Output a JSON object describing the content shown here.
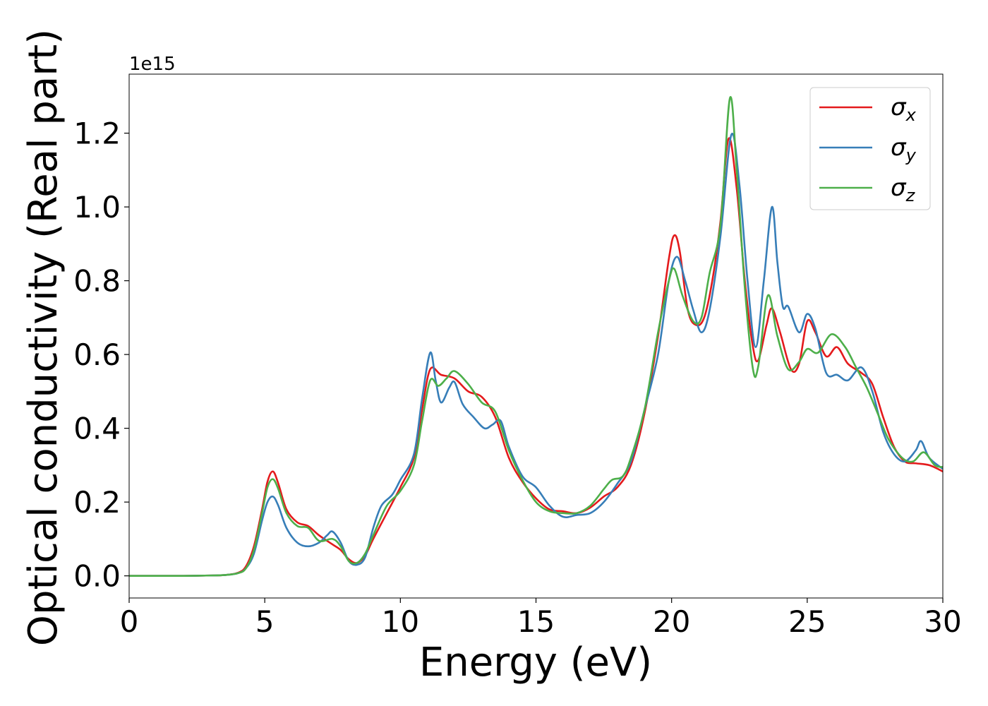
{
  "chart_data": {
    "type": "line",
    "xlabel": "Energy (eV)",
    "ylabel": "Optical conductivity (Real part)",
    "offset_text": "1e15",
    "xlim": [
      0,
      30
    ],
    "ylim": [
      -0.06,
      1.36
    ],
    "x_ticks": [
      0,
      5,
      10,
      15,
      20,
      25,
      30
    ],
    "x_tick_labels": [
      "0",
      "5",
      "10",
      "15",
      "20",
      "25",
      "30"
    ],
    "y_ticks": [
      0.0,
      0.2,
      0.4,
      0.6,
      0.8,
      1.0,
      1.2
    ],
    "y_tick_labels": [
      "0.0",
      "0.2",
      "0.4",
      "0.6",
      "0.8",
      "1.0",
      "1.2"
    ],
    "grid": false,
    "legend_position": "top-right",
    "series": [
      {
        "name": "σx",
        "label_base": "σ",
        "label_sub": "x",
        "color": "#e41a1c",
        "points": [
          [
            0,
            0.0
          ],
          [
            1,
            0.0
          ],
          [
            2,
            0.0
          ],
          [
            3,
            0.001
          ],
          [
            3.5,
            0.002
          ],
          [
            4,
            0.008
          ],
          [
            4.3,
            0.025
          ],
          [
            4.6,
            0.08
          ],
          [
            4.9,
            0.18
          ],
          [
            5.1,
            0.255
          ],
          [
            5.3,
            0.283
          ],
          [
            5.5,
            0.25
          ],
          [
            5.8,
            0.18
          ],
          [
            6.2,
            0.145
          ],
          [
            6.6,
            0.135
          ],
          [
            7,
            0.11
          ],
          [
            7.5,
            0.085
          ],
          [
            7.8,
            0.07
          ],
          [
            8.1,
            0.045
          ],
          [
            8.4,
            0.035
          ],
          [
            8.7,
            0.055
          ],
          [
            9,
            0.1
          ],
          [
            9.5,
            0.17
          ],
          [
            10,
            0.24
          ],
          [
            10.5,
            0.32
          ],
          [
            10.8,
            0.45
          ],
          [
            11.1,
            0.56
          ],
          [
            11.5,
            0.545
          ],
          [
            12,
            0.535
          ],
          [
            12.5,
            0.5
          ],
          [
            13,
            0.485
          ],
          [
            13.5,
            0.43
          ],
          [
            14,
            0.32
          ],
          [
            14.5,
            0.255
          ],
          [
            15,
            0.21
          ],
          [
            15.5,
            0.18
          ],
          [
            16,
            0.175
          ],
          [
            16.5,
            0.17
          ],
          [
            17,
            0.185
          ],
          [
            17.5,
            0.215
          ],
          [
            18,
            0.24
          ],
          [
            18.5,
            0.3
          ],
          [
            19,
            0.44
          ],
          [
            19.5,
            0.65
          ],
          [
            19.9,
            0.86
          ],
          [
            20.1,
            0.923
          ],
          [
            20.3,
            0.88
          ],
          [
            20.6,
            0.72
          ],
          [
            20.9,
            0.68
          ],
          [
            21.2,
            0.7
          ],
          [
            21.5,
            0.8
          ],
          [
            21.8,
            0.96
          ],
          [
            22.1,
            1.185
          ],
          [
            22.4,
            1.05
          ],
          [
            22.7,
            0.8
          ],
          [
            23.0,
            0.62
          ],
          [
            23.2,
            0.585
          ],
          [
            23.5,
            0.68
          ],
          [
            23.7,
            0.725
          ],
          [
            24,
            0.66
          ],
          [
            24.4,
            0.56
          ],
          [
            24.7,
            0.575
          ],
          [
            25,
            0.69
          ],
          [
            25.3,
            0.66
          ],
          [
            25.7,
            0.595
          ],
          [
            26.1,
            0.62
          ],
          [
            26.5,
            0.575
          ],
          [
            27,
            0.55
          ],
          [
            27.4,
            0.52
          ],
          [
            27.8,
            0.43
          ],
          [
            28.2,
            0.35
          ],
          [
            28.6,
            0.31
          ],
          [
            29,
            0.305
          ],
          [
            29.5,
            0.3
          ],
          [
            30,
            0.283
          ]
        ]
      },
      {
        "name": "σy",
        "label_base": "σ",
        "label_sub": "y",
        "color": "#377eb8",
        "points": [
          [
            0,
            0.0
          ],
          [
            1,
            0.0
          ],
          [
            2,
            0.0
          ],
          [
            3,
            0.001
          ],
          [
            3.5,
            0.002
          ],
          [
            4,
            0.007
          ],
          [
            4.3,
            0.02
          ],
          [
            4.6,
            0.06
          ],
          [
            4.9,
            0.15
          ],
          [
            5.1,
            0.2
          ],
          [
            5.3,
            0.215
          ],
          [
            5.5,
            0.19
          ],
          [
            5.8,
            0.13
          ],
          [
            6.2,
            0.09
          ],
          [
            6.6,
            0.08
          ],
          [
            7,
            0.09
          ],
          [
            7.3,
            0.11
          ],
          [
            7.5,
            0.12
          ],
          [
            7.8,
            0.09
          ],
          [
            8.1,
            0.04
          ],
          [
            8.4,
            0.03
          ],
          [
            8.7,
            0.05
          ],
          [
            9,
            0.13
          ],
          [
            9.3,
            0.19
          ],
          [
            9.7,
            0.22
          ],
          [
            10,
            0.26
          ],
          [
            10.5,
            0.33
          ],
          [
            10.8,
            0.48
          ],
          [
            11.1,
            0.605
          ],
          [
            11.3,
            0.53
          ],
          [
            11.5,
            0.47
          ],
          [
            11.8,
            0.51
          ],
          [
            12,
            0.525
          ],
          [
            12.3,
            0.465
          ],
          [
            12.7,
            0.43
          ],
          [
            13.1,
            0.4
          ],
          [
            13.4,
            0.41
          ],
          [
            13.7,
            0.42
          ],
          [
            14,
            0.35
          ],
          [
            14.5,
            0.27
          ],
          [
            15,
            0.24
          ],
          [
            15.5,
            0.19
          ],
          [
            16,
            0.16
          ],
          [
            16.5,
            0.165
          ],
          [
            17,
            0.17
          ],
          [
            17.5,
            0.2
          ],
          [
            18,
            0.25
          ],
          [
            18.5,
            0.31
          ],
          [
            19,
            0.45
          ],
          [
            19.5,
            0.6
          ],
          [
            19.9,
            0.8
          ],
          [
            20.2,
            0.865
          ],
          [
            20.5,
            0.8
          ],
          [
            20.8,
            0.72
          ],
          [
            21.1,
            0.66
          ],
          [
            21.4,
            0.72
          ],
          [
            21.8,
            0.92
          ],
          [
            22.2,
            1.195
          ],
          [
            22.5,
            1.06
          ],
          [
            22.8,
            0.8
          ],
          [
            23.1,
            0.62
          ],
          [
            23.4,
            0.8
          ],
          [
            23.7,
            1.0
          ],
          [
            23.9,
            0.85
          ],
          [
            24.1,
            0.73
          ],
          [
            24.3,
            0.73
          ],
          [
            24.7,
            0.66
          ],
          [
            25.0,
            0.71
          ],
          [
            25.3,
            0.67
          ],
          [
            25.7,
            0.55
          ],
          [
            26.1,
            0.545
          ],
          [
            26.5,
            0.53
          ],
          [
            27,
            0.565
          ],
          [
            27.4,
            0.5
          ],
          [
            27.8,
            0.39
          ],
          [
            28.2,
            0.33
          ],
          [
            28.6,
            0.31
          ],
          [
            29,
            0.34
          ],
          [
            29.2,
            0.365
          ],
          [
            29.5,
            0.32
          ],
          [
            30,
            0.29
          ]
        ]
      },
      {
        "name": "σz",
        "label_base": "σ",
        "label_sub": "z",
        "color": "#4daf4a",
        "points": [
          [
            0,
            0.0
          ],
          [
            1,
            0.0
          ],
          [
            2,
            0.0
          ],
          [
            3,
            0.001
          ],
          [
            3.5,
            0.002
          ],
          [
            4,
            0.007
          ],
          [
            4.3,
            0.02
          ],
          [
            4.6,
            0.07
          ],
          [
            4.9,
            0.17
          ],
          [
            5.1,
            0.24
          ],
          [
            5.3,
            0.262
          ],
          [
            5.5,
            0.235
          ],
          [
            5.8,
            0.17
          ],
          [
            6.2,
            0.135
          ],
          [
            6.6,
            0.13
          ],
          [
            7,
            0.095
          ],
          [
            7.5,
            0.1
          ],
          [
            7.8,
            0.08
          ],
          [
            8.1,
            0.04
          ],
          [
            8.4,
            0.035
          ],
          [
            8.7,
            0.06
          ],
          [
            9,
            0.11
          ],
          [
            9.5,
            0.19
          ],
          [
            10,
            0.23
          ],
          [
            10.5,
            0.3
          ],
          [
            10.8,
            0.42
          ],
          [
            11.1,
            0.53
          ],
          [
            11.4,
            0.515
          ],
          [
            11.7,
            0.535
          ],
          [
            12,
            0.555
          ],
          [
            12.5,
            0.52
          ],
          [
            13,
            0.47
          ],
          [
            13.5,
            0.445
          ],
          [
            14,
            0.34
          ],
          [
            14.5,
            0.26
          ],
          [
            15,
            0.2
          ],
          [
            15.5,
            0.175
          ],
          [
            16,
            0.17
          ],
          [
            16.5,
            0.17
          ],
          [
            17,
            0.19
          ],
          [
            17.5,
            0.235
          ],
          [
            17.8,
            0.26
          ],
          [
            18.2,
            0.27
          ],
          [
            18.5,
            0.32
          ],
          [
            19,
            0.45
          ],
          [
            19.5,
            0.66
          ],
          [
            19.9,
            0.8
          ],
          [
            20.1,
            0.832
          ],
          [
            20.4,
            0.76
          ],
          [
            20.8,
            0.69
          ],
          [
            21.1,
            0.7
          ],
          [
            21.4,
            0.82
          ],
          [
            21.8,
            0.95
          ],
          [
            22.15,
            1.295
          ],
          [
            22.4,
            1.1
          ],
          [
            22.7,
            0.78
          ],
          [
            23.0,
            0.56
          ],
          [
            23.2,
            0.57
          ],
          [
            23.55,
            0.76
          ],
          [
            23.9,
            0.65
          ],
          [
            24.3,
            0.56
          ],
          [
            24.7,
            0.58
          ],
          [
            25.0,
            0.615
          ],
          [
            25.4,
            0.605
          ],
          [
            25.9,
            0.655
          ],
          [
            26.4,
            0.62
          ],
          [
            26.8,
            0.565
          ],
          [
            27.2,
            0.51
          ],
          [
            27.6,
            0.44
          ],
          [
            28.0,
            0.37
          ],
          [
            28.5,
            0.32
          ],
          [
            28.9,
            0.31
          ],
          [
            29.3,
            0.335
          ],
          [
            29.7,
            0.3
          ],
          [
            30,
            0.295
          ]
        ]
      }
    ]
  }
}
